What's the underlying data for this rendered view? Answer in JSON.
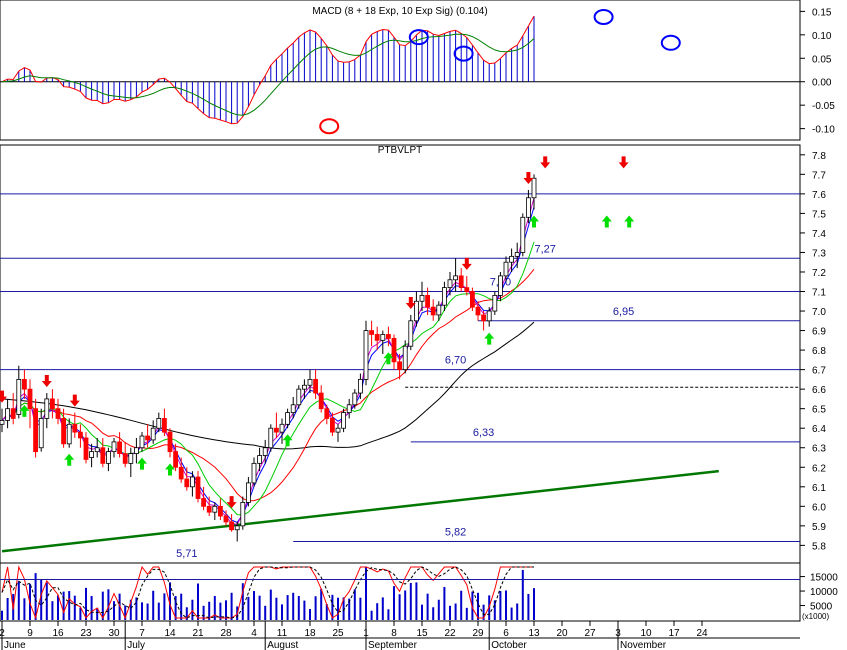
{
  "chart_data": {
    "type": "candlestick",
    "macd_panel": {
      "title": "MACD (8 + 18 Exp, 10 Exp Sig) (0.104)",
      "y_ticks": [
        "0.15",
        "0.10",
        "0.05",
        "0.00",
        "-0.05",
        "-0.10"
      ],
      "ylim": [
        -0.12,
        0.17
      ],
      "zero_line": 0.0,
      "macd_line_color": "#ff0000",
      "signal_line_color": "#008000",
      "histogram_color": "#0000cc",
      "marked_circles": [
        {
          "color": "#ff0000",
          "day": 57,
          "value": -0.095
        },
        {
          "color": "#0000ff",
          "day": 73,
          "value": 0.095
        },
        {
          "color": "#0000ff",
          "day": 81,
          "value": 0.06
        },
        {
          "color": "#0000ff",
          "day": 106,
          "value": 0.138
        },
        {
          "color": "#0000ff",
          "day": 118,
          "value": 0.083
        }
      ]
    },
    "price_panel": {
      "title": "PTBVLPT",
      "y_ticks": [
        "7.8",
        "7.7",
        "7.6",
        "7.5",
        "7.4",
        "7.3",
        "7.2",
        "7.1",
        "7.0",
        "6.9",
        "6.8",
        "6.7",
        "6.6",
        "6.5",
        "6.4",
        "6.3",
        "6.2",
        "6.1",
        "6.0",
        "5.9",
        "5.8"
      ],
      "ylim": [
        5.72,
        7.84
      ],
      "x_ticks": [
        "2",
        "9",
        "16",
        "23",
        "30",
        "7",
        "14",
        "21",
        "28",
        "4",
        "11",
        "18",
        "25",
        "1",
        "8",
        "15",
        "22",
        "29",
        "6",
        "13",
        "20",
        "27",
        "3",
        "10",
        "17",
        "24"
      ],
      "x_tick_days": [
        0,
        5,
        10,
        15,
        20,
        25,
        30,
        35,
        40,
        45,
        50,
        55,
        60,
        65,
        70,
        75,
        80,
        85,
        90,
        95,
        100,
        105,
        110,
        115,
        120,
        125
      ],
      "months": [
        "June",
        "July",
        "August",
        "September",
        "October",
        "November"
      ],
      "month_days": [
        0,
        22,
        47,
        65,
        87,
        110
      ],
      "horizontal_levels": [
        {
          "value": 7.6,
          "label": ""
        },
        {
          "value": 7.27,
          "label": "7,27"
        },
        {
          "value": 7.1,
          "label": "7,10"
        },
        {
          "value": 6.95,
          "label": "6,95"
        },
        {
          "value": 6.7,
          "label": "6,70"
        },
        {
          "value": 6.33,
          "label": "6,33"
        },
        {
          "value": 5.82,
          "label": "5,82"
        },
        {
          "value": 5.71,
          "label": "5,71"
        }
      ],
      "dotted_level": 6.61,
      "trendline": {
        "start": [
          0,
          5.77
        ],
        "end": [
          128,
          6.18
        ],
        "color": "#007700"
      },
      "candles_ohlc": [
        [
          6.42,
          6.5,
          6.38,
          6.44
        ],
        [
          6.44,
          6.55,
          6.4,
          6.5
        ],
        [
          6.5,
          6.58,
          6.42,
          6.45
        ],
        [
          6.47,
          6.72,
          6.45,
          6.65
        ],
        [
          6.65,
          6.7,
          6.55,
          6.6
        ],
        [
          6.6,
          6.65,
          6.4,
          6.5
        ],
        [
          6.5,
          6.55,
          6.25,
          6.28
        ],
        [
          6.3,
          6.5,
          6.28,
          6.45
        ],
        [
          6.45,
          6.58,
          6.4,
          6.55
        ],
        [
          6.55,
          6.6,
          6.45,
          6.5
        ],
        [
          6.5,
          6.55,
          6.42,
          6.45
        ],
        [
          6.45,
          6.5,
          6.3,
          6.32
        ],
        [
          6.32,
          6.45,
          6.3,
          6.42
        ],
        [
          6.42,
          6.48,
          6.35,
          6.38
        ],
        [
          6.38,
          6.42,
          6.3,
          6.35
        ],
        [
          6.35,
          6.38,
          6.22,
          6.24
        ],
        [
          6.25,
          6.32,
          6.2,
          6.28
        ],
        [
          6.28,
          6.35,
          6.25,
          6.3
        ],
        [
          6.3,
          6.35,
          6.2,
          6.22
        ],
        [
          6.22,
          6.3,
          6.18,
          6.28
        ],
        [
          6.28,
          6.35,
          6.25,
          6.33
        ],
        [
          6.33,
          6.38,
          6.25,
          6.27
        ],
        [
          6.27,
          6.33,
          6.2,
          6.22
        ],
        [
          6.22,
          6.3,
          6.15,
          6.27
        ],
        [
          6.27,
          6.35,
          6.22,
          6.3
        ],
        [
          6.3,
          6.38,
          6.28,
          6.36
        ],
        [
          6.36,
          6.42,
          6.3,
          6.34
        ],
        [
          6.34,
          6.44,
          6.32,
          6.4
        ],
        [
          6.4,
          6.48,
          6.38,
          6.45
        ],
        [
          6.45,
          6.5,
          6.36,
          6.38
        ],
        [
          6.38,
          6.4,
          6.25,
          6.28
        ],
        [
          6.28,
          6.32,
          6.18,
          6.2
        ],
        [
          6.2,
          6.25,
          6.12,
          6.14
        ],
        [
          6.14,
          6.2,
          6.08,
          6.1
        ],
        [
          6.1,
          6.18,
          6.05,
          6.15
        ],
        [
          6.15,
          6.18,
          6.02,
          6.04
        ],
        [
          6.04,
          6.1,
          5.98,
          6.0
        ],
        [
          6.0,
          6.05,
          5.95,
          5.97
        ],
        [
          5.97,
          6.02,
          5.93,
          6.0
        ],
        [
          6.0,
          6.04,
          5.93,
          5.95
        ],
        [
          5.95,
          5.98,
          5.9,
          5.92
        ],
        [
          5.92,
          5.96,
          5.87,
          5.88
        ],
        [
          5.88,
          5.92,
          5.82,
          5.9
        ],
        [
          5.9,
          6.05,
          5.88,
          6.02
        ],
        [
          6.02,
          6.15,
          6.0,
          6.12
        ],
        [
          6.12,
          6.25,
          6.1,
          6.22
        ],
        [
          6.22,
          6.3,
          6.18,
          6.26
        ],
        [
          6.26,
          6.34,
          6.22,
          6.3
        ],
        [
          6.3,
          6.42,
          6.28,
          6.4
        ],
        [
          6.4,
          6.48,
          6.35,
          6.38
        ],
        [
          6.38,
          6.45,
          6.32,
          6.42
        ],
        [
          6.42,
          6.5,
          6.4,
          6.48
        ],
        [
          6.48,
          6.56,
          6.45,
          6.52
        ],
        [
          6.52,
          6.62,
          6.5,
          6.6
        ],
        [
          6.6,
          6.65,
          6.55,
          6.62
        ],
        [
          6.62,
          6.7,
          6.58,
          6.65
        ],
        [
          6.65,
          6.7,
          6.55,
          6.58
        ],
        [
          6.58,
          6.62,
          6.48,
          6.5
        ],
        [
          6.5,
          6.52,
          6.42,
          6.45
        ],
        [
          6.45,
          6.48,
          6.36,
          6.38
        ],
        [
          6.38,
          6.42,
          6.33,
          6.4
        ],
        [
          6.4,
          6.5,
          6.38,
          6.48
        ],
        [
          6.48,
          6.55,
          6.45,
          6.52
        ],
        [
          6.52,
          6.6,
          6.5,
          6.58
        ],
        [
          6.58,
          6.68,
          6.55,
          6.65
        ],
        [
          6.65,
          6.95,
          6.62,
          6.9
        ],
        [
          6.9,
          6.95,
          6.82,
          6.88
        ],
        [
          6.88,
          6.92,
          6.8,
          6.85
        ],
        [
          6.85,
          6.9,
          6.78,
          6.88
        ],
        [
          6.88,
          6.92,
          6.82,
          6.86
        ],
        [
          6.86,
          6.88,
          6.7,
          6.74
        ],
        [
          6.74,
          6.78,
          6.65,
          6.7
        ],
        [
          6.7,
          6.85,
          6.68,
          6.82
        ],
        [
          6.82,
          6.98,
          6.8,
          6.95
        ],
        [
          6.95,
          7.1,
          6.92,
          7.05
        ],
        [
          7.05,
          7.15,
          7.0,
          7.08
        ],
        [
          7.08,
          7.12,
          6.98,
          7.02
        ],
        [
          7.02,
          7.06,
          6.95,
          6.98
        ],
        [
          6.98,
          7.05,
          6.95,
          7.03
        ],
        [
          7.03,
          7.15,
          7.0,
          7.12
        ],
        [
          7.12,
          7.2,
          7.08,
          7.16
        ],
        [
          7.16,
          7.27,
          7.1,
          7.18
        ],
        [
          7.18,
          7.22,
          7.1,
          7.12
        ],
        [
          7.12,
          7.18,
          7.08,
          7.1
        ],
        [
          7.1,
          7.12,
          7.0,
          7.02
        ],
        [
          7.02,
          7.05,
          6.95,
          6.98
        ],
        [
          6.98,
          7.0,
          6.9,
          6.95
        ],
        [
          6.95,
          7.02,
          6.92,
          7.0
        ],
        [
          7.0,
          7.1,
          6.98,
          7.08
        ],
        [
          7.08,
          7.2,
          7.05,
          7.18
        ],
        [
          7.18,
          7.28,
          7.15,
          7.25
        ],
        [
          7.25,
          7.32,
          7.2,
          7.28
        ],
        [
          7.28,
          7.35,
          7.22,
          7.3
        ],
        [
          7.3,
          7.5,
          7.28,
          7.48
        ],
        [
          7.48,
          7.62,
          7.45,
          7.58
        ],
        [
          7.58,
          7.7,
          7.52,
          7.68
        ]
      ],
      "moving_averages": [
        {
          "name": "",
          "color": "#000000"
        },
        {
          "name": "",
          "color": "#ff0000"
        },
        {
          "name": "",
          "color": "#00cc00"
        },
        {
          "name": "",
          "color": "#0000ff"
        },
        {
          "name": "",
          "color": "#cc00cc"
        }
      ],
      "sell_arrows_day": [
        0,
        8,
        13,
        41,
        73,
        83,
        94,
        97,
        111
      ],
      "buy_arrows_day": [
        4,
        12,
        25,
        30,
        51,
        69,
        87,
        95,
        108,
        112
      ]
    },
    "volume_panel": {
      "y_ticks": [
        "15000",
        "10000",
        "5000"
      ],
      "unit_label": "(x1000)",
      "ylim": [
        0,
        19000
      ],
      "bar_color": "#0000cc",
      "stochastic_colors": [
        "#ff0000",
        "#000000"
      ]
    }
  }
}
